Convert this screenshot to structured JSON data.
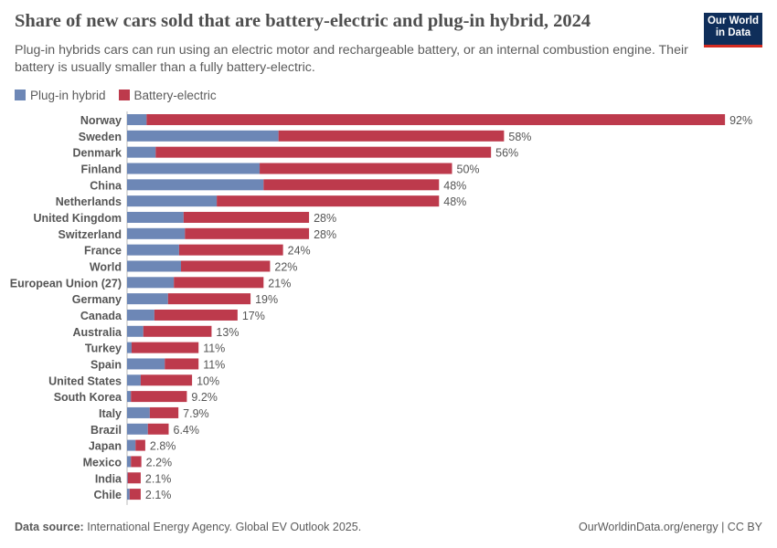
{
  "header": {
    "title": "Share of new cars sold that are battery-electric and plug-in hybrid, 2024",
    "subtitle": "Plug-in hybrids cars can run using an electric motor and rechargeable battery, or an internal combustion engine. Their battery is usually smaller than a fully battery-electric.",
    "logo": "Our World in Data"
  },
  "footer": {
    "source_label": "Data source:",
    "source": "International Energy Agency. Global EV Outlook 2025.",
    "license": "OurWorldinData.org/energy | CC BY"
  },
  "chart_data": {
    "type": "bar",
    "orientation": "horizontal",
    "stacked": true,
    "title": "Share of new cars sold that are battery-electric and plug-in hybrid, 2024",
    "legend_position": "top-left",
    "categories": [
      "Norway",
      "Sweden",
      "Denmark",
      "Finland",
      "China",
      "Netherlands",
      "United Kingdom",
      "Switzerland",
      "France",
      "World",
      "European Union (27)",
      "Germany",
      "Canada",
      "Australia",
      "Turkey",
      "Spain",
      "United States",
      "South Korea",
      "Italy",
      "Brazil",
      "Japan",
      "Mexico",
      "India",
      "Chile"
    ],
    "series": [
      {
        "name": "Plug-in hybrid",
        "color": "#6d87b6",
        "values": [
          3,
          23.3,
          4.4,
          20.4,
          21,
          13.8,
          8.7,
          8.9,
          8,
          8.3,
          7.2,
          6.3,
          4.2,
          2.5,
          0.7,
          5.8,
          2.1,
          0.6,
          3.5,
          3.2,
          1.3,
          0.6,
          0.1,
          0.4
        ]
      },
      {
        "name": "Battery-electric",
        "color": "#bd3a4c",
        "values": [
          89,
          34.7,
          51.6,
          29.6,
          27,
          34.2,
          19.3,
          19.1,
          16,
          13.7,
          13.8,
          12.7,
          12.8,
          10.5,
          10.3,
          5.2,
          7.9,
          8.6,
          4.4,
          3.2,
          1.5,
          1.6,
          2.0,
          1.7
        ]
      }
    ],
    "total_labels": [
      "92%",
      "58%",
      "56%",
      "50%",
      "48%",
      "48%",
      "28%",
      "28%",
      "24%",
      "22%",
      "21%",
      "19%",
      "17%",
      "13%",
      "11%",
      "11%",
      "10%",
      "9.2%",
      "7.9%",
      "6.4%",
      "2.8%",
      "2.2%",
      "2.1%",
      "2.1%"
    ],
    "unit": "%"
  }
}
